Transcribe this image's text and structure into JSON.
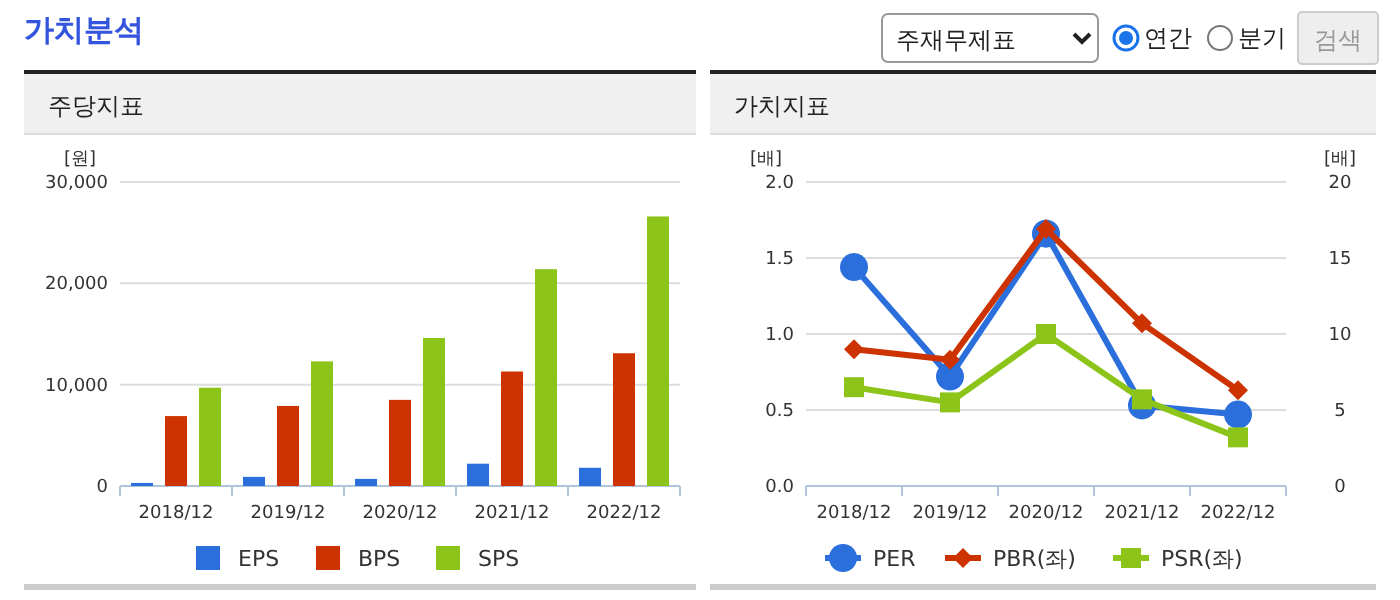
{
  "chart_data": [
    {
      "type": "other",
      "title": "가치분석",
      "annotations": [
        "주재무제표",
        "연간",
        "분기",
        "검색"
      ]
    },
    {
      "type": "bar",
      "title": "주당지표",
      "ylabel": "[원]",
      "categories": [
        "2018/12",
        "2019/12",
        "2020/12",
        "2021/12",
        "2022/12"
      ],
      "series": [
        {
          "name": "EPS",
          "color": "#2a6fdb",
          "values": [
            300,
            900,
            700,
            2200,
            1800
          ]
        },
        {
          "name": "BPS",
          "color": "#cc3300",
          "values": [
            6900,
            7900,
            8500,
            11300,
            13100
          ]
        },
        {
          "name": "SPS",
          "color": "#8cc41a",
          "values": [
            9700,
            12300,
            14600,
            21400,
            26600
          ]
        }
      ],
      "ylim": [
        0,
        30000
      ],
      "yticks": [
        0,
        {
          "value": 10000,
          "label": "10,000"
        },
        {
          "value": 20000,
          "label": "20,000"
        },
        {
          "value": 30000,
          "label": "30,000"
        }
      ],
      "grid": "y",
      "legend": "bottom"
    },
    {
      "type": "line",
      "title": "가치지표",
      "ylabel": "[배]",
      "y2label": "[배]",
      "categories": [
        "2018/12",
        "2019/12",
        "2020/12",
        "2021/12",
        "2022/12"
      ],
      "series": [
        {
          "name": "PER",
          "color": "#2a6fdb",
          "axis": "y2",
          "marker": "circle",
          "values": [
            14.4,
            7.2,
            16.6,
            5.3,
            4.7
          ]
        },
        {
          "name": "PBR(좌)",
          "color": "#cc3300",
          "marker": "diamond",
          "values": [
            0.9,
            0.83,
            1.69,
            1.07,
            0.63
          ]
        },
        {
          "name": "PSR(좌)",
          "color": "#8cc41a",
          "marker": "square",
          "values": [
            0.65,
            0.55,
            1.0,
            0.57,
            0.32
          ]
        }
      ],
      "ylim": [
        0,
        2
      ],
      "yticks": [
        {
          "value": 0,
          "label": "0.0"
        },
        0.5,
        {
          "value": 1,
          "label": "1.0"
        },
        1.5,
        {
          "value": 2,
          "label": "2.0"
        }
      ],
      "y2lim": [
        0,
        20
      ],
      "y2ticks": [
        0,
        5,
        10,
        15,
        20
      ],
      "grid": "y",
      "legend": "bottom"
    }
  ]
}
